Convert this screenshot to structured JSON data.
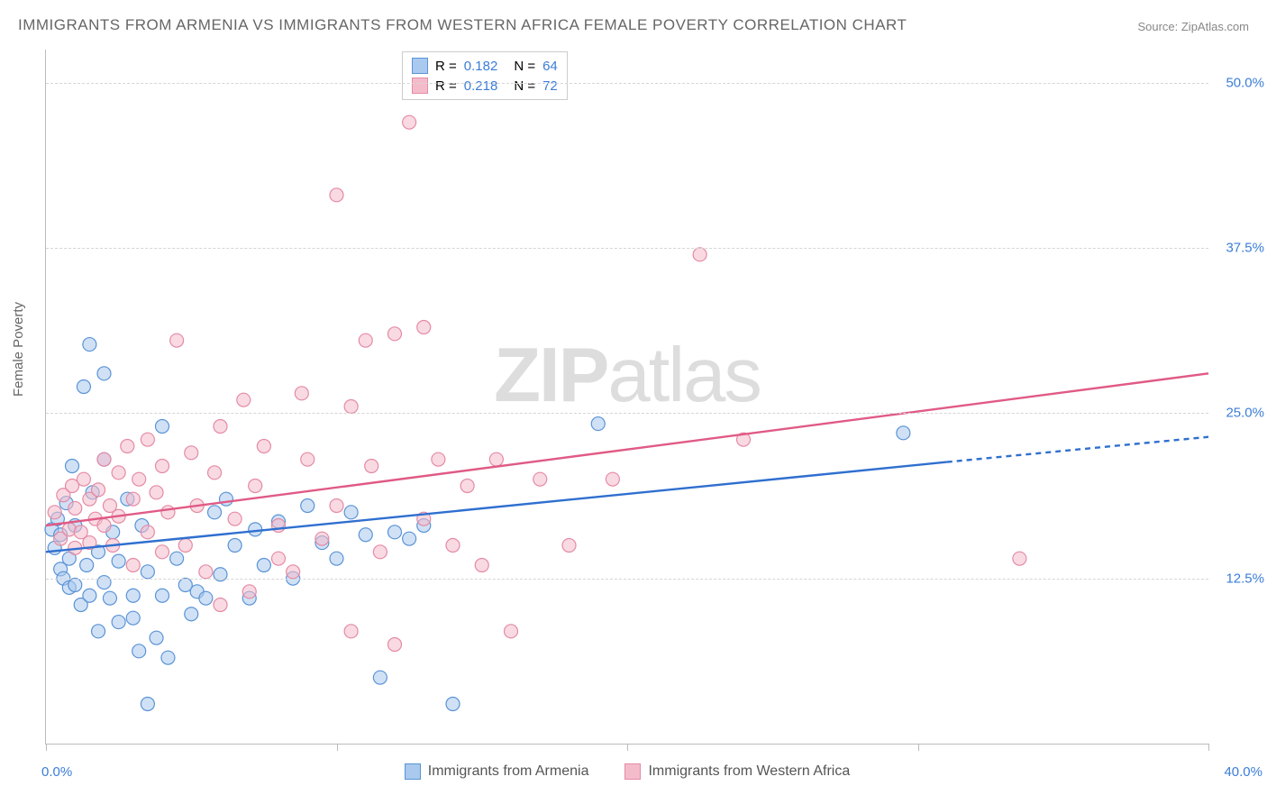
{
  "title": "IMMIGRANTS FROM ARMENIA VS IMMIGRANTS FROM WESTERN AFRICA FEMALE POVERTY CORRELATION CHART",
  "source": "Source: ZipAtlas.com",
  "watermark_bold": "ZIP",
  "watermark_rest": "atlas",
  "chart": {
    "type": "scatter",
    "ylabel": "Female Poverty",
    "x_min": 0.0,
    "x_max": 40.0,
    "y_min": 0.0,
    "y_max": 52.5,
    "x_ticks": [
      0.0,
      10.0,
      20.0,
      30.0,
      40.0
    ],
    "x_tick_labels_shown": {
      "0": "0.0%",
      "40": "40.0%"
    },
    "y_ticks": [
      12.5,
      25.0,
      37.5,
      50.0
    ],
    "y_tick_labels": [
      "12.5%",
      "25.0%",
      "37.5%",
      "50.0%"
    ],
    "grid_color": "#d5d5d5",
    "axis_color": "#bbbbbb",
    "background_color": "#ffffff",
    "point_radius": 7.5,
    "point_opacity": 0.55,
    "series": [
      {
        "name": "Immigrants from Armenia",
        "color_fill": "#a9c9ee",
        "color_stroke": "#5a93d6",
        "r_label": "R = ",
        "r_value": "0.182",
        "n_label": "N = ",
        "n_value": "64",
        "regression": {
          "x1": 0.0,
          "y1": 14.5,
          "x2": 31.0,
          "y2": 21.3,
          "dash_to_x": 40.0,
          "dash_to_y": 23.2,
          "line_color": "#2f6fd0",
          "line_width": 2.4
        },
        "points": [
          [
            0.2,
            16.2
          ],
          [
            0.3,
            14.8
          ],
          [
            0.4,
            17.0
          ],
          [
            0.5,
            13.2
          ],
          [
            0.5,
            15.8
          ],
          [
            0.6,
            12.5
          ],
          [
            0.7,
            18.2
          ],
          [
            0.8,
            11.8
          ],
          [
            0.8,
            14.0
          ],
          [
            0.9,
            21.0
          ],
          [
            1.0,
            12.0
          ],
          [
            1.0,
            16.5
          ],
          [
            1.2,
            10.5
          ],
          [
            1.3,
            27.0
          ],
          [
            1.4,
            13.5
          ],
          [
            1.5,
            30.2
          ],
          [
            1.5,
            11.2
          ],
          [
            1.6,
            19.0
          ],
          [
            1.8,
            8.5
          ],
          [
            1.8,
            14.5
          ],
          [
            2.0,
            12.2
          ],
          [
            2.0,
            21.5
          ],
          [
            2.2,
            11.0
          ],
          [
            2.3,
            16.0
          ],
          [
            2.5,
            9.2
          ],
          [
            2.5,
            13.8
          ],
          [
            2.8,
            18.5
          ],
          [
            3.0,
            9.5
          ],
          [
            3.0,
            11.2
          ],
          [
            3.2,
            7.0
          ],
          [
            3.3,
            16.5
          ],
          [
            3.5,
            13.0
          ],
          [
            3.5,
            3.0
          ],
          [
            3.8,
            8.0
          ],
          [
            4.0,
            11.2
          ],
          [
            4.0,
            24.0
          ],
          [
            4.2,
            6.5
          ],
          [
            4.5,
            14.0
          ],
          [
            4.8,
            12.0
          ],
          [
            5.0,
            9.8
          ],
          [
            5.2,
            11.5
          ],
          [
            5.5,
            11.0
          ],
          [
            5.8,
            17.5
          ],
          [
            6.0,
            12.8
          ],
          [
            6.2,
            18.5
          ],
          [
            6.5,
            15.0
          ],
          [
            7.0,
            11.0
          ],
          [
            7.2,
            16.2
          ],
          [
            7.5,
            13.5
          ],
          [
            8.0,
            16.8
          ],
          [
            8.5,
            12.5
          ],
          [
            9.0,
            18.0
          ],
          [
            9.5,
            15.2
          ],
          [
            10.0,
            14.0
          ],
          [
            10.5,
            17.5
          ],
          [
            11.0,
            15.8
          ],
          [
            11.5,
            5.0
          ],
          [
            12.0,
            16.0
          ],
          [
            12.5,
            15.5
          ],
          [
            13.0,
            16.5
          ],
          [
            14.0,
            3.0
          ],
          [
            19.0,
            24.2
          ],
          [
            29.5,
            23.5
          ],
          [
            2.0,
            28.0
          ]
        ]
      },
      {
        "name": "Immigrants from Western Africa",
        "color_fill": "#f4bccb",
        "color_stroke": "#e58aa4",
        "r_label": "R = ",
        "r_value": "0.218",
        "n_label": "N = ",
        "n_value": "72",
        "regression": {
          "x1": 0.0,
          "y1": 16.5,
          "x2": 40.0,
          "y2": 28.0,
          "line_color": "#e05a85",
          "line_width": 2.4
        },
        "points": [
          [
            0.3,
            17.5
          ],
          [
            0.5,
            15.5
          ],
          [
            0.6,
            18.8
          ],
          [
            0.8,
            16.2
          ],
          [
            0.9,
            19.5
          ],
          [
            1.0,
            14.8
          ],
          [
            1.0,
            17.8
          ],
          [
            1.2,
            16.0
          ],
          [
            1.3,
            20.0
          ],
          [
            1.5,
            15.2
          ],
          [
            1.5,
            18.5
          ],
          [
            1.7,
            17.0
          ],
          [
            1.8,
            19.2
          ],
          [
            2.0,
            21.5
          ],
          [
            2.0,
            16.5
          ],
          [
            2.2,
            18.0
          ],
          [
            2.3,
            15.0
          ],
          [
            2.5,
            20.5
          ],
          [
            2.5,
            17.2
          ],
          [
            2.8,
            22.5
          ],
          [
            3.0,
            18.5
          ],
          [
            3.0,
            13.5
          ],
          [
            3.2,
            20.0
          ],
          [
            3.5,
            16.0
          ],
          [
            3.5,
            23.0
          ],
          [
            3.8,
            19.0
          ],
          [
            4.0,
            14.5
          ],
          [
            4.0,
            21.0
          ],
          [
            4.2,
            17.5
          ],
          [
            4.5,
            30.5
          ],
          [
            4.8,
            15.0
          ],
          [
            5.0,
            22.0
          ],
          [
            5.2,
            18.0
          ],
          [
            5.5,
            13.0
          ],
          [
            5.8,
            20.5
          ],
          [
            6.0,
            24.0
          ],
          [
            6.0,
            10.5
          ],
          [
            6.5,
            17.0
          ],
          [
            6.8,
            26.0
          ],
          [
            7.0,
            11.5
          ],
          [
            7.2,
            19.5
          ],
          [
            7.5,
            22.5
          ],
          [
            8.0,
            16.5
          ],
          [
            8.0,
            14.0
          ],
          [
            8.5,
            13.0
          ],
          [
            8.8,
            26.5
          ],
          [
            9.0,
            21.5
          ],
          [
            9.5,
            15.5
          ],
          [
            10.0,
            41.5
          ],
          [
            10.0,
            18.0
          ],
          [
            10.5,
            25.5
          ],
          [
            10.5,
            8.5
          ],
          [
            11.0,
            30.5
          ],
          [
            11.2,
            21.0
          ],
          [
            11.5,
            14.5
          ],
          [
            12.0,
            7.5
          ],
          [
            12.0,
            31.0
          ],
          [
            12.5,
            47.0
          ],
          [
            13.0,
            17.0
          ],
          [
            13.5,
            21.5
          ],
          [
            14.0,
            15.0
          ],
          [
            14.5,
            19.5
          ],
          [
            15.0,
            13.5
          ],
          [
            15.5,
            21.5
          ],
          [
            16.0,
            8.5
          ],
          [
            17.0,
            20.0
          ],
          [
            18.0,
            15.0
          ],
          [
            19.5,
            20.0
          ],
          [
            22.5,
            37.0
          ],
          [
            24.0,
            23.0
          ],
          [
            33.5,
            14.0
          ],
          [
            13.0,
            31.5
          ]
        ]
      }
    ],
    "legend_bottom": [
      {
        "label": "Immigrants from Armenia",
        "fill": "#a9c9ee",
        "stroke": "#5a93d6"
      },
      {
        "label": "Immigrants from Western Africa",
        "fill": "#f4bccb",
        "stroke": "#e58aa4"
      }
    ]
  }
}
